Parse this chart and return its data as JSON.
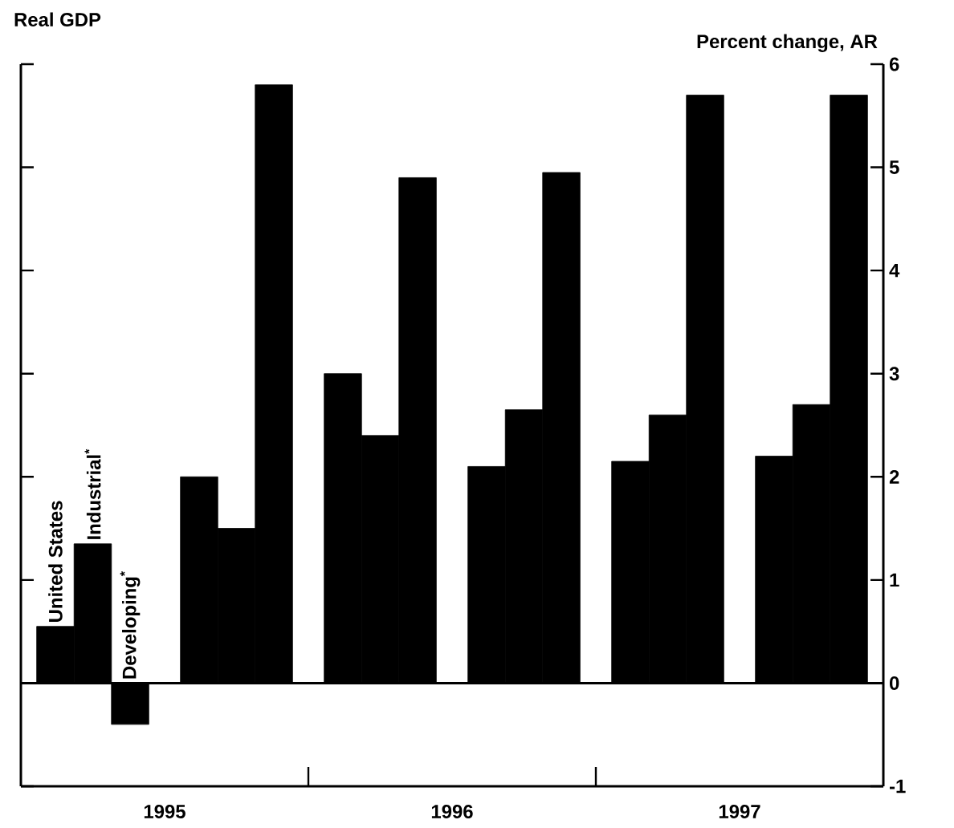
{
  "chart_data": {
    "type": "bar",
    "title": "Real GDP",
    "ylabel": "Percent change, AR",
    "x": [
      1995.25,
      1995.75,
      1996.25,
      1996.75,
      1997.25,
      1997.75
    ],
    "xlim": [
      1995,
      1998
    ],
    "xticks": [
      {
        "value": 1995.5,
        "label": "1995"
      },
      {
        "value": 1996,
        "label": null
      },
      {
        "value": 1996.5,
        "label": "1996"
      },
      {
        "value": 1997,
        "label": null
      },
      {
        "value": 1997.5,
        "label": "1997"
      }
    ],
    "ylim": [
      -1,
      6
    ],
    "yticks": [
      -1,
      0,
      1,
      2,
      3,
      4,
      5,
      6
    ],
    "ref_lines": [
      {
        "axis": "y",
        "value": 0
      }
    ],
    "series": [
      {
        "name": "United States",
        "color": "#000000",
        "values": [
          0.55,
          2.0,
          3.0,
          2.1,
          2.15,
          2.2
        ]
      },
      {
        "name": "Industrial$^{*}$",
        "color": "#000000",
        "values": [
          1.35,
          1.5,
          2.4,
          2.65,
          2.6,
          2.7
        ]
      },
      {
        "name": "Developing$^{*}$",
        "color": "#000000",
        "values": [
          -0.4,
          5.8,
          4.9,
          4.95,
          5.7,
          5.7
        ]
      }
    ]
  }
}
